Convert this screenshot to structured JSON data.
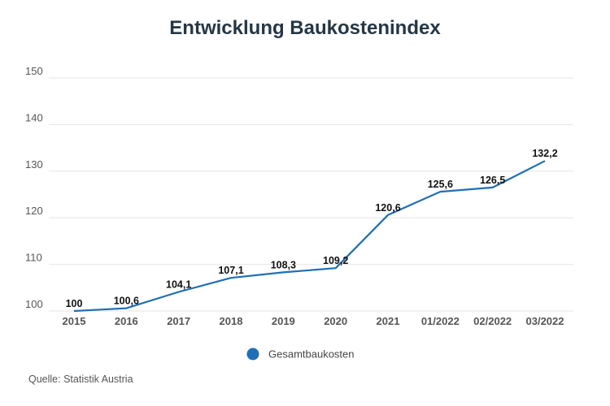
{
  "chart_data": {
    "type": "line",
    "title": "Entwicklung Baukostenindex",
    "categories": [
      "2015",
      "2016",
      "2017",
      "2018",
      "2019",
      "2020",
      "2021",
      "01/2022",
      "02/2022",
      "03/2022"
    ],
    "series": [
      {
        "name": "Gesamtbaukosten",
        "values": [
          100,
          100.6,
          104.1,
          107.1,
          108.3,
          109.2,
          120.6,
          125.6,
          126.5,
          132.2
        ],
        "labels": [
          "100",
          "100,6",
          "104,1",
          "107,1",
          "108,3",
          "109,2",
          "120,6",
          "125,6",
          "126,5",
          "132,2"
        ],
        "color": "#1f6fb5"
      }
    ],
    "yticks": [
      "100",
      "110",
      "120",
      "130",
      "140",
      "150"
    ],
    "ylim": [
      100,
      150
    ],
    "grid": true,
    "legend_position": "bottom",
    "xlabel": "",
    "ylabel": ""
  },
  "source": "Quelle: Statistik Austria"
}
